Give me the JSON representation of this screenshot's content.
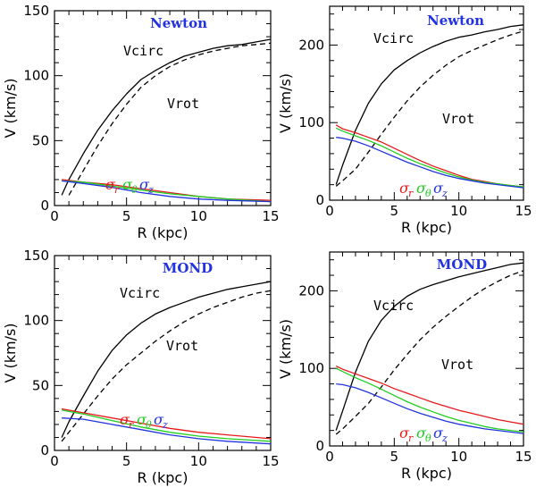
{
  "chart_data": [
    {
      "type": "line",
      "model": "Newton",
      "xlabel": "R (kpc)",
      "ylabel": "V (km/s)",
      "xlim": [
        0,
        15
      ],
      "ylim": [
        0,
        150
      ],
      "xticks": [
        "0",
        "5",
        "10",
        "15"
      ],
      "yticks": [
        "0",
        "50",
        "100",
        "150"
      ],
      "labels": {
        "vcirc": "Vcirc",
        "vrot": "Vrot"
      },
      "sigma_labels": [
        {
          "symbol": "σ",
          "sub": "r",
          "color": "#e41a1c"
        },
        {
          "symbol": "σ",
          "sub": "θ",
          "color": "#22cc22"
        },
        {
          "symbol": "σ",
          "sub": "z",
          "color": "#2233dd"
        }
      ],
      "series": [
        {
          "name": "Vcirc",
          "color": "#000000",
          "dash": false,
          "x": [
            0.5,
            1,
            2,
            3,
            4,
            5,
            6,
            7,
            8,
            9,
            10,
            11,
            12,
            13,
            14,
            15
          ],
          "y": [
            8,
            20,
            40,
            58,
            73,
            86,
            97,
            104,
            110,
            115,
            118,
            121,
            123,
            124,
            126,
            128
          ]
        },
        {
          "name": "Vrot",
          "color": "#000000",
          "dash": true,
          "x": [
            1,
            2,
            3,
            4,
            5,
            6,
            7,
            8,
            9,
            10,
            11,
            12,
            13,
            14,
            15
          ],
          "y": [
            8,
            27,
            46,
            63,
            78,
            91,
            100,
            107,
            112,
            116,
            119,
            121,
            123,
            124,
            125
          ]
        },
        {
          "name": "σr",
          "color": "#e41a1c",
          "dash": false,
          "x": [
            0.5,
            2,
            4,
            6,
            8,
            10,
            12,
            15
          ],
          "y": [
            20,
            18,
            16,
            13,
            10,
            7,
            5,
            4
          ]
        },
        {
          "name": "σθ",
          "color": "#22cc22",
          "dash": false,
          "x": [
            0.5,
            2,
            4,
            6,
            8,
            10,
            12,
            15
          ],
          "y": [
            19,
            18,
            15,
            12,
            9,
            7,
            5,
            3
          ]
        },
        {
          "name": "σz",
          "color": "#2233dd",
          "dash": false,
          "x": [
            0.5,
            2,
            4,
            6,
            8,
            10,
            12,
            15
          ],
          "y": [
            19,
            17,
            14,
            10,
            7,
            5,
            4,
            3
          ]
        }
      ]
    },
    {
      "type": "line",
      "model": "Newton",
      "xlabel": "R (kpc)",
      "ylabel": "V (km/s)",
      "xlim": [
        0,
        15
      ],
      "ylim": [
        0,
        250
      ],
      "xticks": [
        "0",
        "5",
        "10",
        "15"
      ],
      "yticks": [
        "0",
        "100",
        "200"
      ],
      "labels": {
        "vcirc": "Vcirc",
        "vrot": "Vrot"
      },
      "sigma_labels": [
        {
          "symbol": "σ",
          "sub": "r",
          "color": "#e41a1c"
        },
        {
          "symbol": "σ",
          "sub": "θ",
          "color": "#22cc22"
        },
        {
          "symbol": "σ",
          "sub": "z",
          "color": "#2233dd"
        }
      ],
      "series": [
        {
          "name": "Vcirc",
          "color": "#000000",
          "dash": false,
          "x": [
            0.5,
            1,
            2,
            3,
            4,
            5,
            6,
            7,
            8,
            9,
            10,
            11,
            12,
            13,
            14,
            15
          ],
          "y": [
            20,
            45,
            90,
            125,
            150,
            168,
            180,
            190,
            198,
            205,
            210,
            213,
            217,
            220,
            224,
            226
          ]
        },
        {
          "name": "Vrot",
          "color": "#000000",
          "dash": true,
          "x": [
            0.5,
            1,
            2,
            3,
            4,
            5,
            6,
            7,
            8,
            9,
            10,
            11,
            12,
            13,
            14,
            15
          ],
          "y": [
            18,
            25,
            40,
            62,
            85,
            107,
            128,
            146,
            161,
            174,
            185,
            193,
            200,
            207,
            213,
            218
          ]
        },
        {
          "name": "σr",
          "color": "#e41a1c",
          "dash": false,
          "x": [
            0.5,
            1,
            2,
            3,
            4,
            5,
            6,
            7,
            8,
            9,
            10,
            11,
            12,
            13,
            14,
            15
          ],
          "y": [
            97,
            92,
            87,
            81,
            75,
            67,
            59,
            51,
            44,
            38,
            32,
            27,
            24,
            21,
            19,
            17
          ]
        },
        {
          "name": "σθ",
          "color": "#22cc22",
          "dash": false,
          "x": [
            0.5,
            1,
            2,
            3,
            4,
            5,
            6,
            7,
            8,
            9,
            10,
            11,
            12,
            13,
            14,
            15
          ],
          "y": [
            93,
            89,
            83,
            77,
            70,
            62,
            54,
            47,
            41,
            35,
            30,
            26,
            23,
            21,
            19,
            17
          ]
        },
        {
          "name": "σz",
          "color": "#2233dd",
          "dash": false,
          "x": [
            0.5,
            1,
            2,
            3,
            4,
            5,
            6,
            7,
            8,
            9,
            10,
            11,
            12,
            13,
            14,
            15
          ],
          "y": [
            81,
            80,
            76,
            70,
            63,
            56,
            49,
            43,
            37,
            32,
            28,
            25,
            22,
            20,
            18,
            16
          ]
        }
      ]
    },
    {
      "type": "line",
      "model": "MOND",
      "xlabel": "R (kpc)",
      "ylabel": "V (km/s)",
      "xlim": [
        0,
        15
      ],
      "ylim": [
        0,
        150
      ],
      "xticks": [
        "0",
        "5",
        "10",
        "15"
      ],
      "yticks": [
        "0",
        "50",
        "100",
        "150"
      ],
      "labels": {
        "vcirc": "Vcirc",
        "vrot": "Vrot"
      },
      "sigma_labels": [
        {
          "symbol": "σ",
          "sub": "r",
          "color": "#e41a1c"
        },
        {
          "symbol": "σ",
          "sub": "θ",
          "color": "#22cc22"
        },
        {
          "symbol": "σ",
          "sub": "z",
          "color": "#2233dd"
        }
      ],
      "series": [
        {
          "name": "Vcirc",
          "color": "#000000",
          "dash": false,
          "x": [
            0.5,
            1,
            2,
            3,
            4,
            5,
            6,
            7,
            8,
            9,
            10,
            11,
            12,
            13,
            14,
            15
          ],
          "y": [
            10,
            22,
            42,
            61,
            77,
            89,
            98,
            105,
            110,
            114,
            118,
            121,
            124,
            126,
            128,
            130
          ]
        },
        {
          "name": "Vrot",
          "color": "#000000",
          "dash": true,
          "x": [
            0.5,
            1,
            2,
            3,
            4,
            5,
            6,
            7,
            8,
            9,
            10,
            11,
            12,
            13,
            14,
            15
          ],
          "y": [
            7,
            14,
            28,
            42,
            55,
            66,
            75,
            84,
            92,
            99,
            105,
            110,
            114,
            118,
            121,
            123
          ]
        },
        {
          "name": "σr",
          "color": "#e41a1c",
          "dash": false,
          "x": [
            0.5,
            2,
            4,
            6,
            8,
            10,
            12,
            15
          ],
          "y": [
            32,
            29,
            25,
            21,
            17,
            14,
            12,
            9
          ]
        },
        {
          "name": "σθ",
          "color": "#22cc22",
          "dash": false,
          "x": [
            0.5,
            2,
            4,
            6,
            8,
            10,
            12,
            15
          ],
          "y": [
            31,
            28,
            23,
            18,
            14,
            11,
            9,
            7
          ]
        },
        {
          "name": "σz",
          "color": "#2233dd",
          "dash": false,
          "x": [
            0.5,
            2,
            4,
            6,
            8,
            10,
            12,
            15
          ],
          "y": [
            25,
            24,
            20,
            16,
            12,
            9,
            7,
            5
          ]
        }
      ]
    },
    {
      "type": "line",
      "model": "MOND",
      "xlabel": "R (kpc)",
      "ylabel": "V (km/s)",
      "xlim": [
        0,
        15
      ],
      "ylim": [
        0,
        250
      ],
      "xticks": [
        "0",
        "5",
        "10",
        "15"
      ],
      "yticks": [
        "0",
        "100",
        "200"
      ],
      "labels": {
        "vcirc": "Vcirc",
        "vrot": "Vrot"
      },
      "sigma_labels": [
        {
          "symbol": "σ",
          "sub": "r",
          "color": "#e41a1c"
        },
        {
          "symbol": "σ",
          "sub": "θ",
          "color": "#22cc22"
        },
        {
          "symbol": "σ",
          "sub": "z",
          "color": "#2233dd"
        }
      ],
      "series": [
        {
          "name": "Vcirc",
          "color": "#000000",
          "dash": false,
          "x": [
            0.5,
            1,
            2,
            3,
            4,
            5,
            6,
            7,
            8,
            9,
            10,
            11,
            12,
            13,
            14,
            15
          ],
          "y": [
            20,
            45,
            95,
            135,
            162,
            180,
            193,
            202,
            208,
            213,
            218,
            222,
            226,
            230,
            234,
            236
          ]
        },
        {
          "name": "Vrot",
          "color": "#000000",
          "dash": true,
          "x": [
            0.5,
            1,
            2,
            3,
            4,
            5,
            6,
            7,
            8,
            9,
            10,
            11,
            12,
            13,
            14,
            15
          ],
          "y": [
            15,
            22,
            38,
            55,
            76,
            98,
            118,
            137,
            153,
            167,
            180,
            192,
            203,
            212,
            220,
            226
          ]
        },
        {
          "name": "σr",
          "color": "#e41a1c",
          "dash": false,
          "x": [
            0.5,
            1,
            2,
            3,
            4,
            5,
            6,
            7,
            8,
            9,
            10,
            11,
            12,
            13,
            14,
            15
          ],
          "y": [
            103,
            99,
            93,
            87,
            81,
            74,
            68,
            62,
            56,
            51,
            46,
            42,
            38,
            34,
            31,
            28
          ]
        },
        {
          "name": "σθ",
          "color": "#22cc22",
          "dash": false,
          "x": [
            0.5,
            1,
            2,
            3,
            4,
            5,
            6,
            7,
            8,
            9,
            10,
            11,
            12,
            13,
            14,
            15
          ],
          "y": [
            100,
            96,
            88,
            81,
            73,
            65,
            57,
            50,
            44,
            38,
            33,
            29,
            25,
            22,
            20,
            18
          ]
        },
        {
          "name": "σz",
          "color": "#2233dd",
          "dash": false,
          "x": [
            0.5,
            1,
            2,
            3,
            4,
            5,
            6,
            7,
            8,
            9,
            10,
            11,
            12,
            13,
            14,
            15
          ],
          "y": [
            80,
            79,
            75,
            69,
            62,
            55,
            48,
            42,
            37,
            32,
            28,
            25,
            22,
            20,
            18,
            16
          ]
        }
      ]
    }
  ]
}
